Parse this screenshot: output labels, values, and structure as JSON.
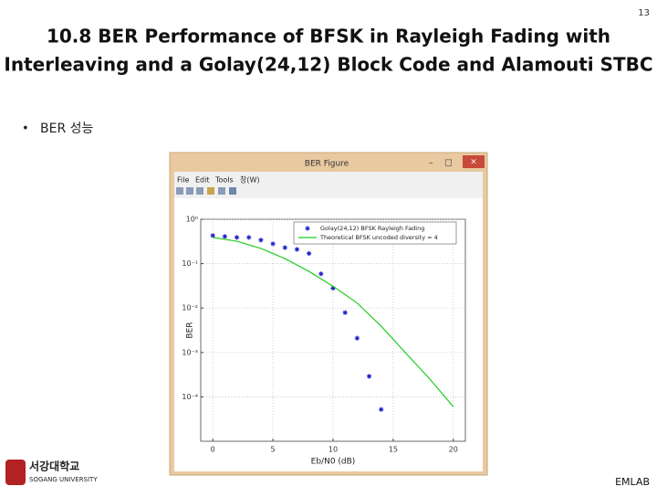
{
  "slide": {
    "page": "13",
    "title_lines": [
      "10.8 BER Performance of BFSK in Rayleigh Fading with",
      "Interleaving and a Golay(24,12) Block Code and Alamouti STBC"
    ],
    "bullet": "BER 성능",
    "logo": [
      "서강대학교",
      "SOGANG UNIVERSITY"
    ],
    "footer": "EMLAB"
  },
  "window": {
    "title": "BER Figure",
    "menu": [
      "File",
      "Edit",
      "Tools",
      "창(W)"
    ]
  },
  "chart_data": {
    "type": "scatter-line",
    "xlabel": "Eb/N0 (dB)",
    "ylabel": "BER",
    "xlim": [
      -1,
      21
    ],
    "xticks": [
      0,
      5,
      10,
      15,
      20
    ],
    "ylim": [
      1e-05,
      1
    ],
    "log_y": true,
    "grid": true,
    "legend": "upper right",
    "yticks": [
      {
        "value": 1,
        "label": "10⁰"
      },
      {
        "value": 0.1,
        "label": "10⁻¹"
      },
      {
        "value": 0.01,
        "label": "10⁻²"
      },
      {
        "value": 0.001,
        "label": "10⁻³"
      },
      {
        "value": 0.0001,
        "label": "10⁻⁴"
      }
    ],
    "series": [
      {
        "name": "Golay(24,12) BFSK Rayleigh Fading",
        "color": "#1f1fcc",
        "marker": "*",
        "x": [
          0,
          1,
          2,
          3,
          4,
          5,
          6,
          7,
          8,
          9,
          10,
          11,
          12,
          13,
          14
        ],
        "values": [
          0.43,
          0.41,
          0.39,
          0.39,
          0.34,
          0.28,
          0.23,
          0.21,
          0.17,
          0.059,
          0.028,
          0.0079,
          0.0021,
          0.00029,
          5.2e-05
        ]
      },
      {
        "name": "Theoretical BFSK uncoded diversity = 4",
        "color": "#22cc22",
        "marker": "line",
        "x": [
          0,
          2,
          4,
          6,
          8,
          10,
          12,
          14,
          16,
          18,
          20
        ],
        "values": [
          0.39,
          0.32,
          0.22,
          0.13,
          0.067,
          0.031,
          0.013,
          0.0039,
          0.001,
          0.00026,
          6e-05
        ]
      }
    ]
  }
}
